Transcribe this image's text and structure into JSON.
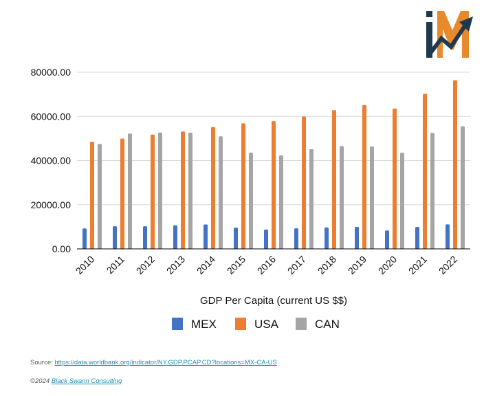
{
  "colors": {
    "MEX": "#4472c4",
    "USA": "#ed7d31",
    "CAN": "#a5a5a5",
    "grid": "#d9d9d9",
    "logo_navy": "#1f3a4d",
    "logo_orange": "#e8892c"
  },
  "logo": {
    "icon": "im-growth-logo"
  },
  "chart_data": {
    "type": "bar",
    "title": "",
    "xlabel": "GDP Per Capita (current US $$)",
    "ylabel": "",
    "ylim": [
      0,
      80000
    ],
    "yticks": [
      0,
      20000,
      40000,
      60000,
      80000
    ],
    "ytick_labels": [
      "0.00",
      "20000.00",
      "40000.00",
      "60000.00",
      "80000.00"
    ],
    "grid": true,
    "legend_position": "bottom",
    "categories": [
      "2010",
      "2011",
      "2012",
      "2013",
      "2014",
      "2015",
      "2016",
      "2017",
      "2018",
      "2019",
      "2020",
      "2021",
      "2022"
    ],
    "series": [
      {
        "name": "MEX",
        "values": [
          9270,
          10230,
          10240,
          10660,
          11050,
          9620,
          8750,
          9290,
          9690,
          9950,
          8330,
          9920,
          11090
        ]
      },
      {
        "name": "USA",
        "values": [
          48470,
          49960,
          51740,
          53150,
          55120,
          56850,
          57870,
          59910,
          62820,
          65090,
          63530,
          70220,
          76330
        ]
      },
      {
        "name": "CAN",
        "values": [
          47510,
          52210,
          52670,
          52640,
          50960,
          43590,
          42320,
          45130,
          46550,
          46330,
          43560,
          52500,
          55520
        ]
      }
    ]
  },
  "footer": {
    "source_prefix": "Source: ",
    "source_url": "https://data.worldbank.org/indicator/NY.GDP.PCAP.CD?locations=MX-CA-US",
    "copyright_prefix": "©2024 ",
    "copyright_link": "Black Swann Consulting"
  }
}
